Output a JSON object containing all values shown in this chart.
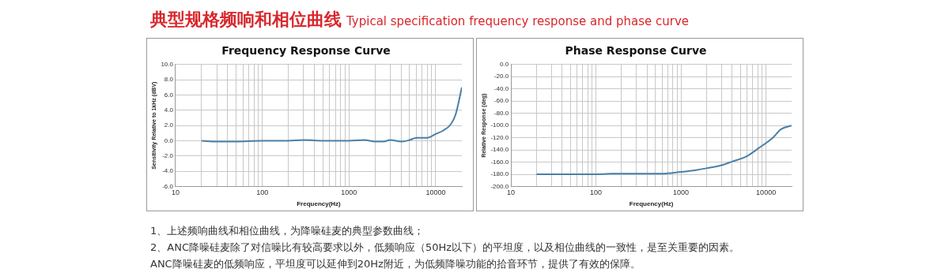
{
  "chart_data": [
    {
      "type": "line",
      "title": "Frequency Response Curve",
      "xlabel": "Frequency(Hz)",
      "ylabel": "Sensitivity Relative to 1kHz (dBV)",
      "log": "x",
      "grid": true,
      "marker": "none",
      "line_style": "solid",
      "annotations": [
        "典型规格频响和相位曲线",
        "Typical specification frequency response and phase curve",
        "1、上述频响曲线和相位曲线，为降噪硅麦的典型参数曲线；",
        "2、ANC降噪硅麦除了对信噪比有较高要求以外，低频响应（50Hz以下）的平坦度，以及相位曲线的一致性，是至关重要的因素。",
        "ANC降噪硅麦的低频响应，平坦度可以延伸到20Hz附近，为低频降噪功能的拾音环节，提供了有效的保障。"
      ],
      "xlim": [
        10,
        20000
      ],
      "ylim": [
        -6,
        10
      ],
      "xticks": [
        10,
        {
          "value": 20,
          "label": null
        },
        {
          "value": 30,
          "label": null
        },
        {
          "value": 40,
          "label": null
        },
        {
          "value": 50,
          "label": null
        },
        {
          "value": 60,
          "label": null
        },
        {
          "value": 70,
          "label": null
        },
        {
          "value": 80,
          "label": null
        },
        {
          "value": 90,
          "label": null
        },
        100,
        {
          "value": 200,
          "label": null
        },
        {
          "value": 300,
          "label": null
        },
        {
          "value": 400,
          "label": null
        },
        {
          "value": 500,
          "label": null
        },
        {
          "value": 600,
          "label": null
        },
        {
          "value": 700,
          "label": null
        },
        {
          "value": 800,
          "label": null
        },
        {
          "value": 900,
          "label": null
        },
        1000,
        {
          "value": 2000,
          "label": null
        },
        {
          "value": 3000,
          "label": null
        },
        {
          "value": 4000,
          "label": null
        },
        {
          "value": 5000,
          "label": null
        },
        {
          "value": 6000,
          "label": null
        },
        {
          "value": 7000,
          "label": null
        },
        {
          "value": 8000,
          "label": null
        },
        {
          "value": 9000,
          "label": null
        },
        10000
      ],
      "yticks": [
        {
          "value": -6,
          "label": "-6.0"
        },
        {
          "value": -4,
          "label": "-4.0"
        },
        {
          "value": -2,
          "label": "-2.0"
        },
        {
          "value": 0,
          "label": "0.0"
        },
        {
          "value": 2,
          "label": "2.0"
        },
        {
          "value": 4,
          "label": "4.0"
        },
        {
          "value": 6,
          "label": "6.0"
        },
        {
          "value": 8,
          "label": "8.0"
        },
        {
          "value": 10,
          "label": "10.0"
        }
      ],
      "x": [
        20,
        30,
        50,
        100,
        200,
        300,
        500,
        1000,
        1500,
        2000,
        2500,
        3000,
        4000,
        5000,
        6000,
        7000,
        8000,
        10000,
        12000,
        15000,
        17000,
        20000
      ],
      "series": [
        {
          "color": "#4a7fa8",
          "values": [
            0,
            -0.1,
            -0.1,
            0,
            0,
            0.1,
            0,
            0,
            0.1,
            -0.1,
            -0.1,
            0.1,
            -0.1,
            0.1,
            0.4,
            0.4,
            0.4,
            0.9,
            1.3,
            2.2,
            3.5,
            7.0
          ]
        }
      ]
    },
    {
      "type": "line",
      "title": "Phase Response Curve",
      "xlabel": "Frequency(Hz)",
      "ylabel": "Relative Response (deg)",
      "log": "x",
      "grid": true,
      "marker": "none",
      "line_style": "solid",
      "xlim": [
        10,
        20000
      ],
      "ylim": [
        -200,
        0
      ],
      "xticks": [
        10,
        {
          "value": 20,
          "label": null
        },
        {
          "value": 30,
          "label": null
        },
        {
          "value": 40,
          "label": null
        },
        {
          "value": 50,
          "label": null
        },
        {
          "value": 60,
          "label": null
        },
        {
          "value": 70,
          "label": null
        },
        {
          "value": 80,
          "label": null
        },
        {
          "value": 90,
          "label": null
        },
        100,
        {
          "value": 200,
          "label": null
        },
        {
          "value": 300,
          "label": null
        },
        {
          "value": 400,
          "label": null
        },
        {
          "value": 500,
          "label": null
        },
        {
          "value": 600,
          "label": null
        },
        {
          "value": 700,
          "label": null
        },
        {
          "value": 800,
          "label": null
        },
        {
          "value": 900,
          "label": null
        },
        1000,
        {
          "value": 2000,
          "label": null
        },
        {
          "value": 3000,
          "label": null
        },
        {
          "value": 4000,
          "label": null
        },
        {
          "value": 5000,
          "label": null
        },
        {
          "value": 6000,
          "label": null
        },
        {
          "value": 7000,
          "label": null
        },
        {
          "value": 8000,
          "label": null
        },
        {
          "value": 9000,
          "label": null
        },
        10000
      ],
      "yticks": [
        {
          "value": -200,
          "label": "-200.0"
        },
        {
          "value": -180,
          "label": "-180.0"
        },
        {
          "value": -160,
          "label": "-160.0"
        },
        {
          "value": -140,
          "label": "-140.0"
        },
        {
          "value": -120,
          "label": "-120.0"
        },
        {
          "value": -100,
          "label": "-100.0"
        },
        {
          "value": -80,
          "label": "-80.0"
        },
        {
          "value": -60,
          "label": "-60.0"
        },
        {
          "value": -40,
          "label": "-40.0"
        },
        {
          "value": -20,
          "label": "-20.0"
        },
        {
          "value": 0,
          "label": "0.0"
        }
      ],
      "x": [
        20,
        30,
        50,
        100,
        150,
        300,
        600,
        1000,
        1500,
        2000,
        3000,
        4000,
        6000,
        8000,
        12000,
        15000,
        20000
      ],
      "series": [
        {
          "color": "#4a7fa8",
          "values": [
            -180,
            -180,
            -180,
            -180,
            -179,
            -179,
            -179,
            -176,
            -173,
            -170,
            -165,
            -159,
            -150,
            -138,
            -120,
            -106,
            -100
          ]
        }
      ]
    }
  ]
}
